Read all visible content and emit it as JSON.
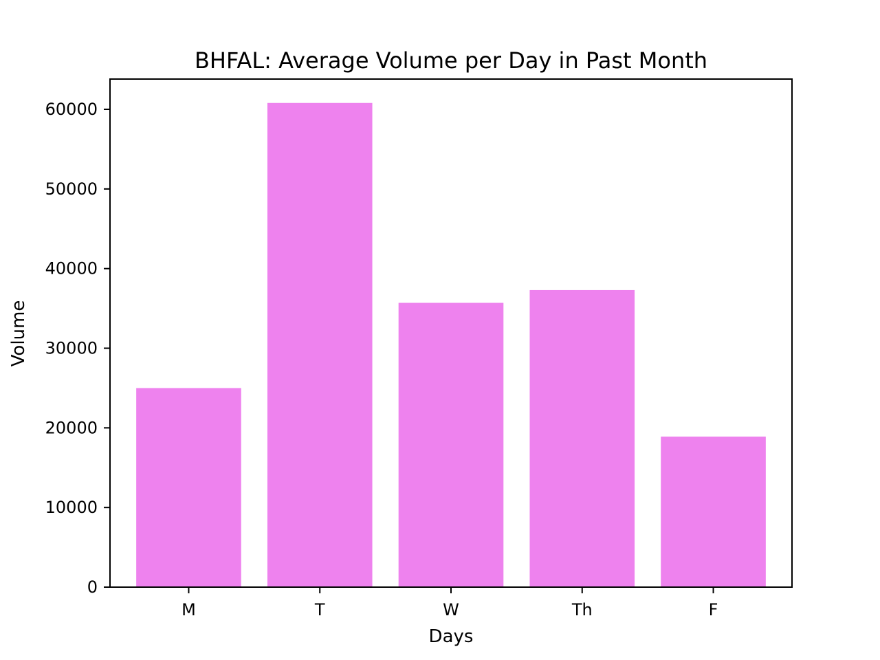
{
  "chart_data": {
    "type": "bar",
    "title": "BHFAL: Average Volume per Day in Past Month",
    "xlabel": "Days",
    "ylabel": "Volume",
    "categories": [
      "M",
      "T",
      "W",
      "Th",
      "F"
    ],
    "values": [
      25000,
      60800,
      35700,
      37300,
      18900
    ],
    "ylim": [
      0,
      63800
    ],
    "yticks": [
      0,
      10000,
      20000,
      30000,
      40000,
      50000,
      60000
    ],
    "ytick_labels": [
      "0",
      "10000",
      "20000",
      "30000",
      "40000",
      "50000",
      "60000"
    ],
    "grid": false,
    "bar_color": "#ee82ee"
  }
}
